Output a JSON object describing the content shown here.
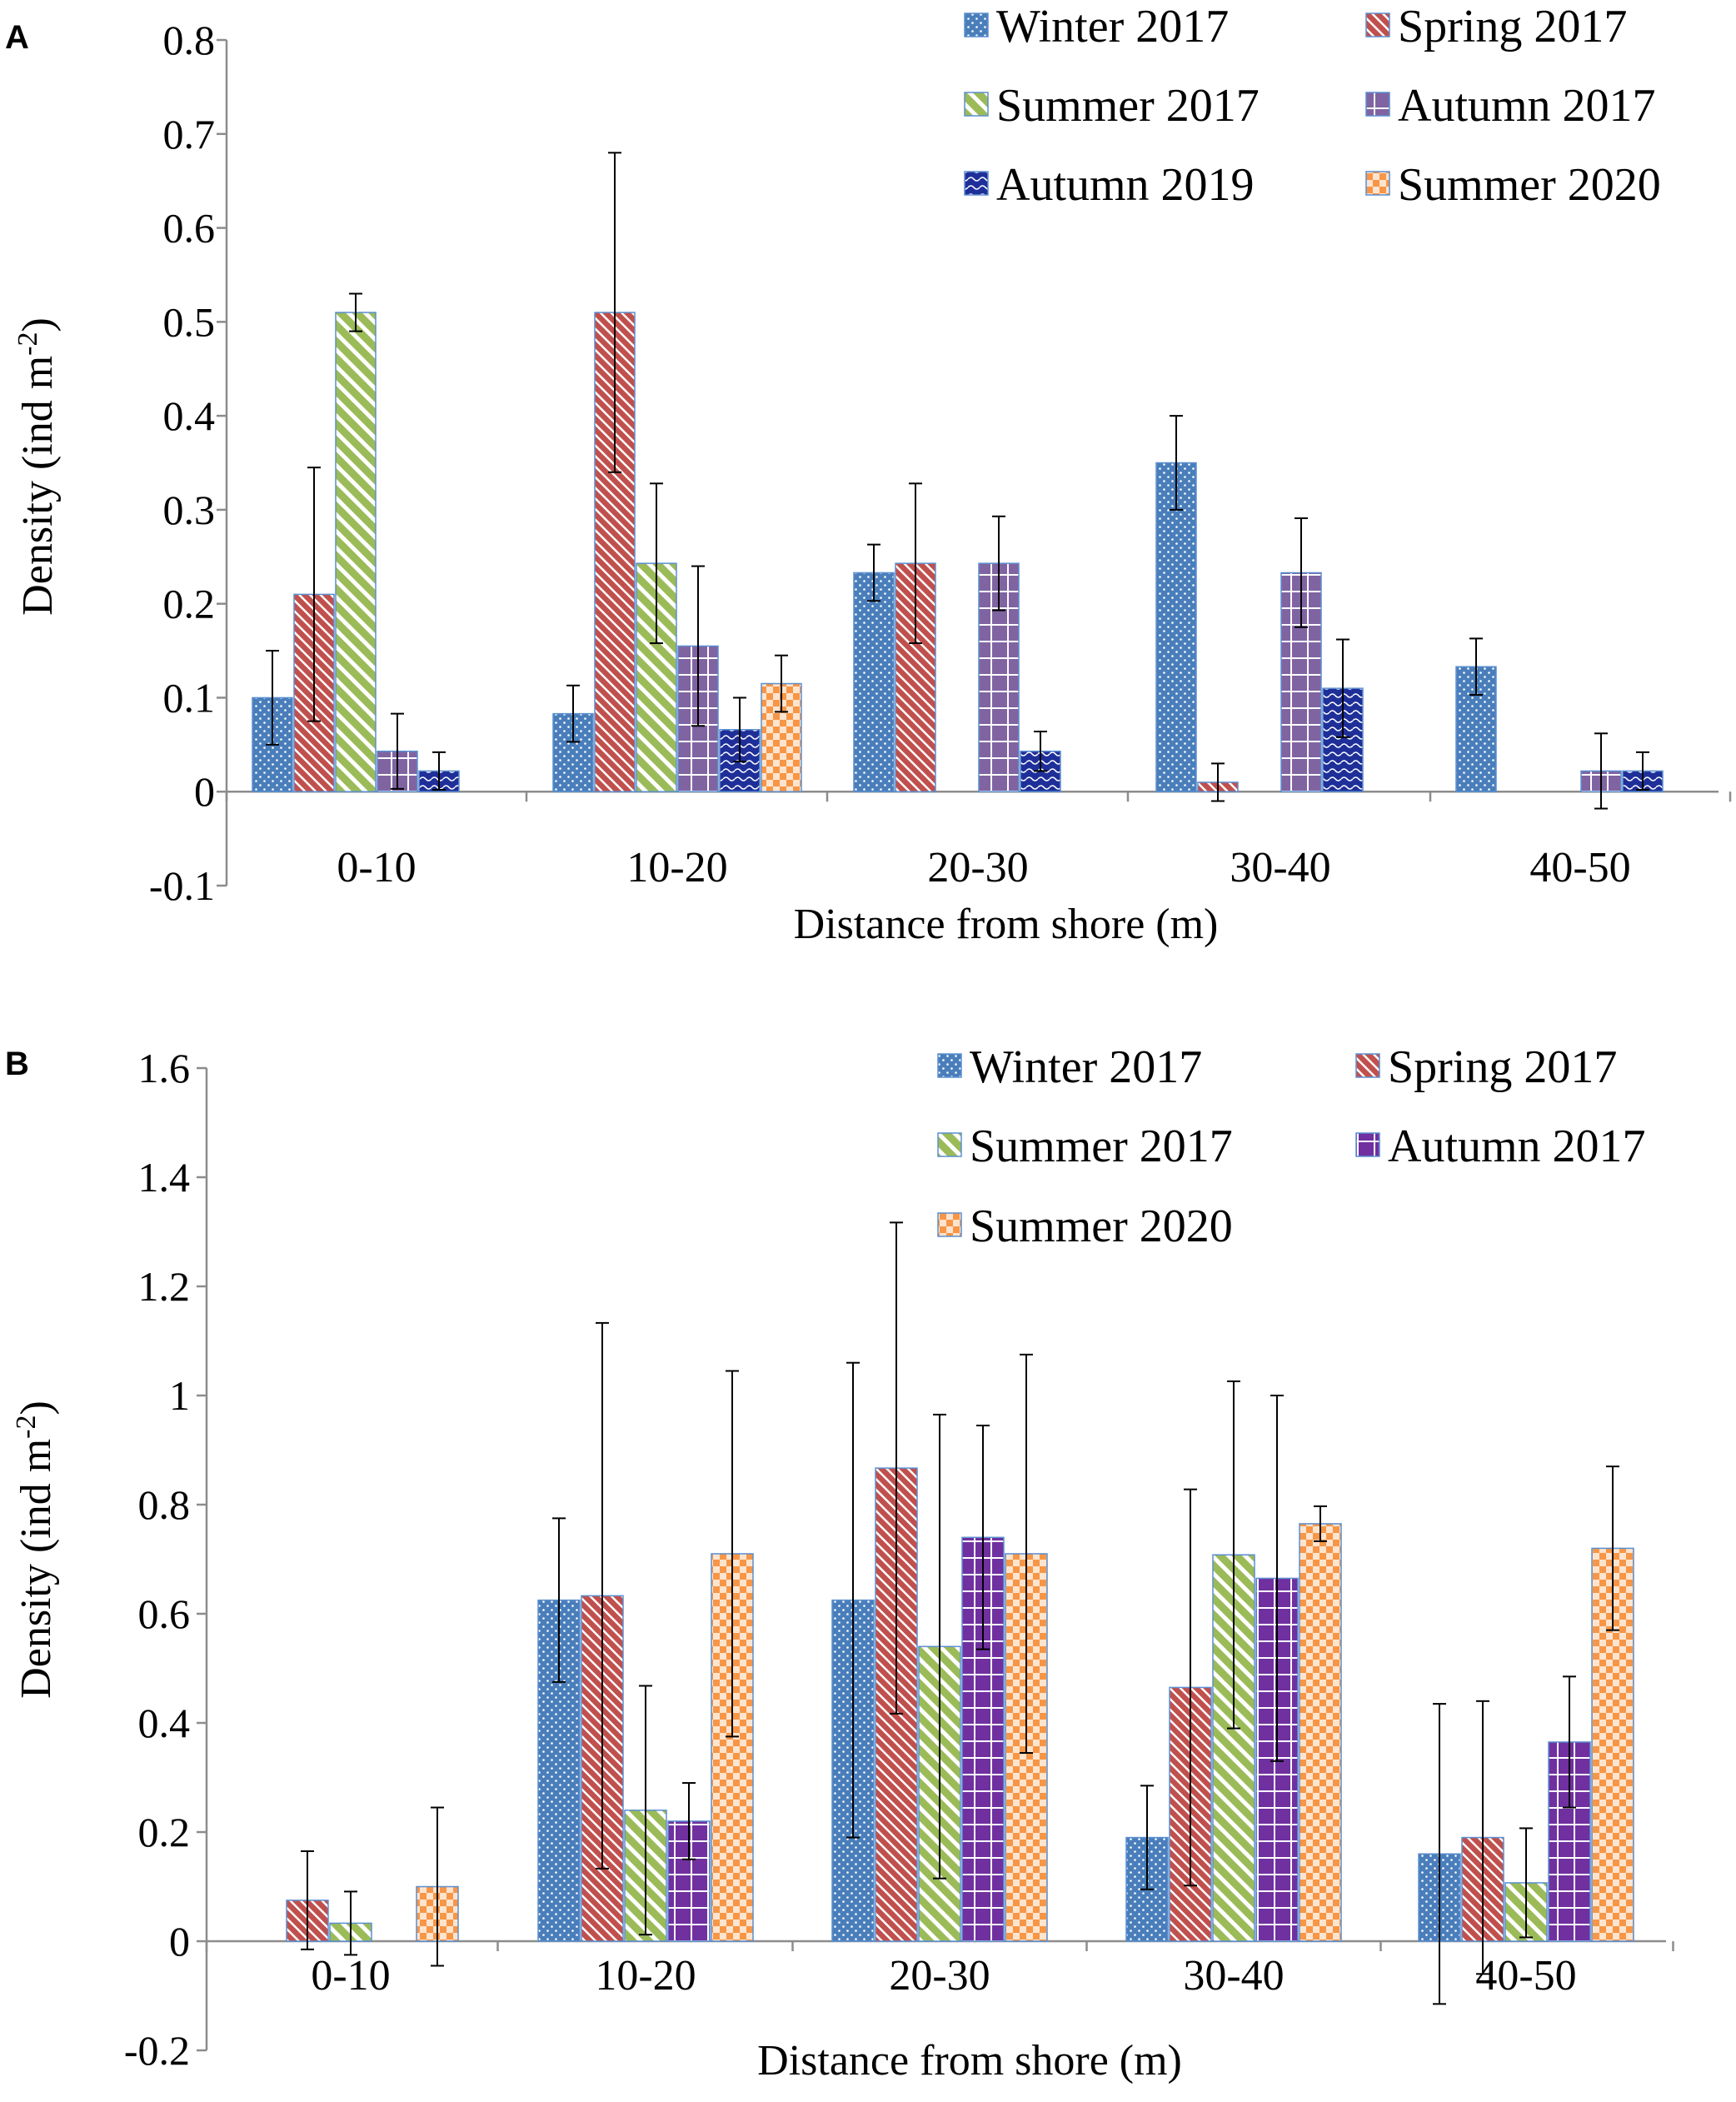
{
  "chart_data": [
    {
      "panel_label": "A",
      "type": "bar",
      "categories": [
        "0-10",
        "10-20",
        "20-30",
        "30-40",
        "40-50"
      ],
      "xlabel": "Distance from shore (m)",
      "ylabel_main": "Density (ind m",
      "ylabel_sup": "-2",
      "ylabel_close": ")",
      "ylim": [
        -0.1,
        0.8
      ],
      "yticks": [
        -0.1,
        0,
        0.1,
        0.2,
        0.3,
        0.4,
        0.5,
        0.6,
        0.7,
        0.8
      ],
      "ytick_labels": [
        "-0.1",
        "0",
        "0.1",
        "0.2",
        "0.3",
        "0.4",
        "0.5",
        "0.6",
        "0.7",
        "0.8"
      ],
      "legend": "top-right",
      "series": [
        {
          "name": "Winter 2017",
          "color": "#4a7ebb",
          "pattern": "dots",
          "values": [
            0.1,
            0.083,
            0.233,
            0.35,
            0.133
          ],
          "errors": [
            0.05,
            0.03,
            0.03,
            0.05,
            0.03
          ]
        },
        {
          "name": "Spring 2017",
          "color": "#c0504d",
          "pattern": "diag",
          "values": [
            0.21,
            0.51,
            0.243,
            0.01,
            null
          ],
          "errors": [
            0.135,
            0.17,
            0.085,
            0.02,
            null
          ]
        },
        {
          "name": "Summer 2017",
          "color": "#9bbb59",
          "pattern": "wdiag",
          "values": [
            0.51,
            0.243,
            null,
            null,
            null
          ],
          "errors": [
            0.02,
            0.085,
            null,
            null,
            null
          ]
        },
        {
          "name": "Autumn 2017",
          "color": "#8064a2",
          "pattern": "grid",
          "values": [
            0.043,
            0.155,
            0.243,
            0.233,
            0.022
          ],
          "errors": [
            0.04,
            0.085,
            0.05,
            0.058,
            0.04
          ]
        },
        {
          "name": "Autumn 2019",
          "color": "#1f2f99",
          "pattern": "wave",
          "values": [
            0.022,
            0.066,
            0.043,
            0.11,
            0.022
          ],
          "errors": [
            0.02,
            0.034,
            0.021,
            0.052,
            0.02
          ]
        },
        {
          "name": "Summer 2020",
          "color": "#f79646",
          "pattern": "checker",
          "values": [
            null,
            0.115,
            null,
            null,
            null
          ],
          "errors": [
            null,
            0.03,
            null,
            null,
            null
          ]
        }
      ]
    },
    {
      "panel_label": "B",
      "type": "bar",
      "categories": [
        "0-10",
        "10-20",
        "20-30",
        "30-40",
        "40-50"
      ],
      "xlabel": "Distance from shore (m)",
      "ylabel_main": "Density (ind m",
      "ylabel_sup": "-2",
      "ylabel_close": ")",
      "ylim": [
        -0.2,
        1.6
      ],
      "yticks": [
        -0.2,
        0,
        0.2,
        0.4,
        0.6,
        0.8,
        1.0,
        1.2,
        1.4,
        1.6
      ],
      "ytick_labels": [
        "-0.2",
        "0",
        "0.2",
        "0.4",
        "0.6",
        "0.8",
        "1",
        "1.2",
        "1.4",
        "1.6"
      ],
      "legend": "top-right",
      "series": [
        {
          "name": "Winter 2017",
          "color": "#4a7ebb",
          "pattern": "dots",
          "values": [
            null,
            0.625,
            0.625,
            0.19,
            0.16
          ],
          "errors": [
            null,
            0.15,
            0.435,
            0.095,
            0.275
          ]
        },
        {
          "name": "Spring 2017",
          "color": "#c0504d",
          "pattern": "diag",
          "values": [
            0.075,
            0.633,
            0.867,
            0.465,
            0.19
          ],
          "errors": [
            0.09,
            0.5,
            0.45,
            0.363,
            0.25
          ]
        },
        {
          "name": "Summer 2017",
          "color": "#9bbb59",
          "pattern": "wdiag",
          "values": [
            0.033,
            0.24,
            0.54,
            0.708,
            0.107
          ],
          "errors": [
            0.058,
            0.228,
            0.425,
            0.318,
            0.1
          ]
        },
        {
          "name": "Autumn 2017",
          "color": "#7030a0",
          "pattern": "grid",
          "values": [
            null,
            0.22,
            0.74,
            0.665,
            0.365
          ],
          "errors": [
            null,
            0.07,
            0.205,
            0.335,
            0.12
          ]
        },
        {
          "name": "Summer 2020",
          "color": "#f79646",
          "pattern": "checker",
          "values": [
            0.1,
            0.71,
            0.71,
            0.765,
            0.72
          ],
          "errors": [
            0.145,
            0.335,
            0.365,
            0.032,
            0.15
          ]
        }
      ]
    }
  ]
}
